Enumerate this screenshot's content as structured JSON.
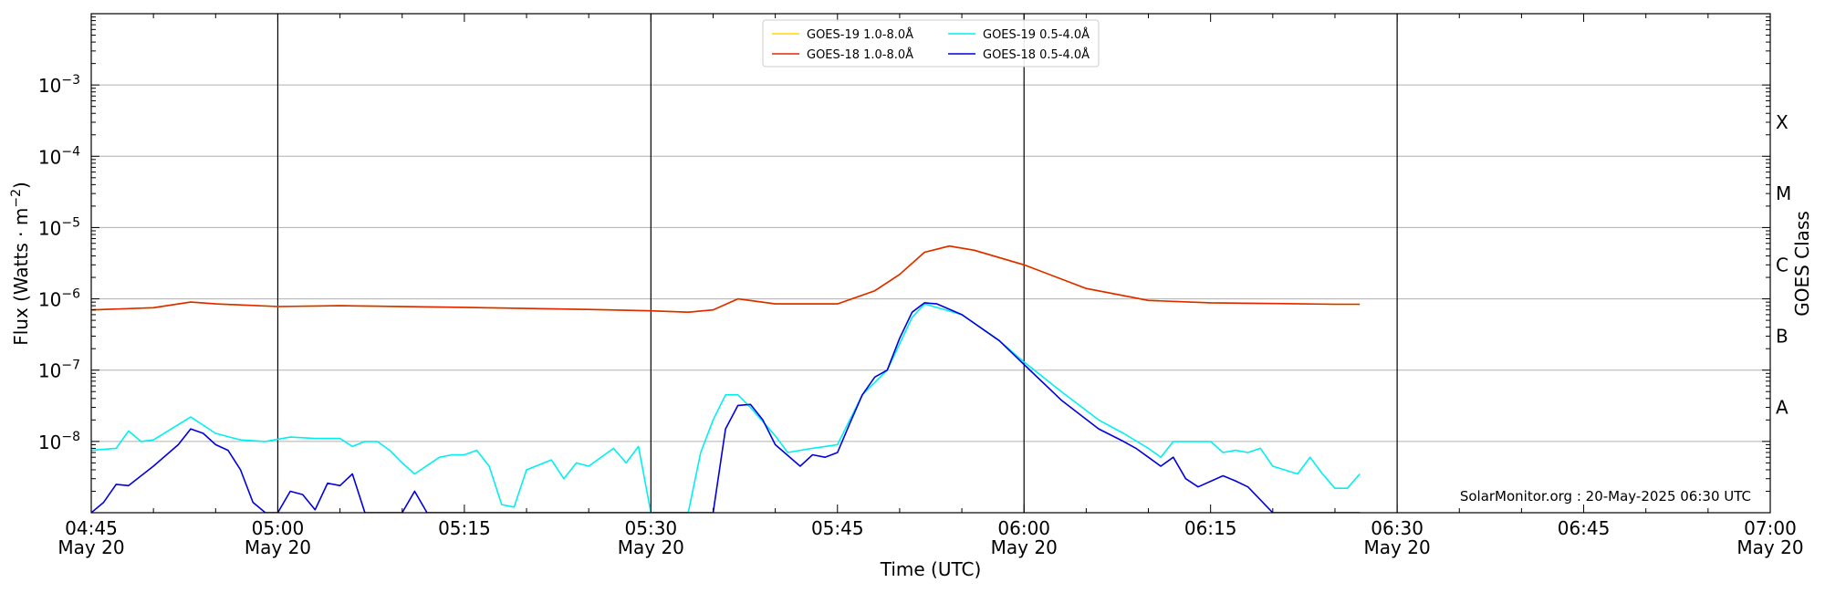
{
  "chart_data": {
    "type": "line",
    "xlabel": "Time (UTC)",
    "ylabel": "Flux (Watts · m⁻²)",
    "right_label": "GOES Class",
    "credit": "SolarMonitor.org : 20-May-2025 06:30 UTC",
    "scale": "log",
    "grid": "horizontal at each decade",
    "legend_placement": "top-center",
    "xlim": [
      "04:45",
      "07:00"
    ],
    "ylim": [
      1e-09,
      0.01
    ],
    "x_ticks": [
      {
        "time": "04:45",
        "top": "04:45",
        "bottom": "May 20"
      },
      {
        "time": "05:00",
        "top": "05:00",
        "bottom": "May 20"
      },
      {
        "time": "05:15",
        "top": "05:15",
        "bottom": ""
      },
      {
        "time": "05:30",
        "top": "05:30",
        "bottom": "May 20"
      },
      {
        "time": "05:45",
        "top": "05:45",
        "bottom": ""
      },
      {
        "time": "06:00",
        "top": "06:00",
        "bottom": "May 20"
      },
      {
        "time": "06:15",
        "top": "06:15",
        "bottom": ""
      },
      {
        "time": "06:30",
        "top": "06:30",
        "bottom": "May 20"
      },
      {
        "time": "06:45",
        "top": "06:45",
        "bottom": ""
      },
      {
        "time": "07:00",
        "top": "07:00",
        "bottom": "May 20"
      }
    ],
    "y_ticks": [
      {
        "value": 1e-08,
        "base": "10",
        "exp": "−8"
      },
      {
        "value": 1e-07,
        "base": "10",
        "exp": "−7"
      },
      {
        "value": 1e-06,
        "base": "10",
        "exp": "−6"
      },
      {
        "value": 1e-05,
        "base": "10",
        "exp": "−5"
      },
      {
        "value": 0.0001,
        "base": "10",
        "exp": "−4"
      },
      {
        "value": 0.001,
        "base": "10",
        "exp": "−3"
      }
    ],
    "vertical_lines": [
      "05:00",
      "05:30",
      "06:00",
      "06:30"
    ],
    "goes_classes": [
      {
        "label": "A",
        "flux": 3e-08
      },
      {
        "label": "B",
        "flux": 3e-07
      },
      {
        "label": "C",
        "flux": 3e-06
      },
      {
        "label": "M",
        "flux": 3e-05
      },
      {
        "label": "X",
        "flux": 0.0003
      }
    ],
    "series": [
      {
        "name": "GOES-19 1.0-8.0Å",
        "color": "#ffd700",
        "x": [
          "04:45",
          "04:50",
          "04:53",
          "04:55",
          "05:00",
          "05:05",
          "05:15",
          "05:25",
          "05:30",
          "05:33",
          "05:35",
          "05:37",
          "05:40",
          "05:45",
          "05:48",
          "05:50",
          "05:52",
          "05:54",
          "05:56",
          "06:00",
          "06:05",
          "06:10",
          "06:15",
          "06:20",
          "06:25",
          "06:27"
        ],
        "y": [
          7e-07,
          7.5e-07,
          9e-07,
          8.5e-07,
          7.8e-07,
          8e-07,
          7.6e-07,
          7.1e-07,
          6.8e-07,
          6.5e-07,
          7e-07,
          1e-06,
          8.5e-07,
          8.5e-07,
          1.3e-06,
          2.2e-06,
          4.5e-06,
          5.5e-06,
          4.8e-06,
          3e-06,
          1.4e-06,
          9.5e-07,
          8.8e-07,
          8.6e-07,
          8.4e-07,
          8.4e-07
        ]
      },
      {
        "name": "GOES-18 1.0-8.0Å",
        "color": "#e02800",
        "x": [
          "04:45",
          "04:50",
          "04:53",
          "04:55",
          "05:00",
          "05:05",
          "05:15",
          "05:25",
          "05:30",
          "05:33",
          "05:35",
          "05:37",
          "05:40",
          "05:45",
          "05:48",
          "05:50",
          "05:52",
          "05:54",
          "05:56",
          "06:00",
          "06:05",
          "06:10",
          "06:15",
          "06:20",
          "06:25",
          "06:27"
        ],
        "y": [
          7e-07,
          7.5e-07,
          9e-07,
          8.5e-07,
          7.8e-07,
          8e-07,
          7.6e-07,
          7.1e-07,
          6.8e-07,
          6.5e-07,
          7e-07,
          1e-06,
          8.5e-07,
          8.5e-07,
          1.3e-06,
          2.2e-06,
          4.5e-06,
          5.5e-06,
          4.8e-06,
          3e-06,
          1.4e-06,
          9.5e-07,
          8.8e-07,
          8.6e-07,
          8.4e-07,
          8.4e-07
        ]
      },
      {
        "name": "GOES-19 0.5-4.0Å",
        "color": "#00f0f0",
        "x": [
          "04:45",
          "04:47",
          "04:48",
          "04:49",
          "04:50",
          "04:53",
          "04:55",
          "04:57",
          "04:59",
          "05:01",
          "05:03",
          "05:05",
          "05:06",
          "05:07",
          "05:08",
          "05:09",
          "05:10",
          "05:11",
          "05:13",
          "05:14",
          "05:15",
          "05:16",
          "05:17",
          "05:18",
          "05:19",
          "05:20",
          "05:22",
          "05:23",
          "05:24",
          "05:25",
          "05:27",
          "05:28",
          "05:29",
          "05:30",
          "05:31",
          "05:32",
          "05:33",
          "05:34",
          "05:35",
          "05:36",
          "05:37",
          "05:38",
          "05:40",
          "05:41",
          "05:43",
          "05:45",
          "05:47",
          "05:49",
          "05:51",
          "05:52",
          "05:55",
          "05:58",
          "06:00",
          "06:03",
          "06:06",
          "06:08",
          "06:10",
          "06:11",
          "06:12",
          "06:14",
          "06:15",
          "06:16",
          "06:17",
          "06:18",
          "06:19",
          "06:20",
          "06:22",
          "06:23",
          "06:24",
          "06:25",
          "06:26",
          "06:27"
        ],
        "y": [
          7.5e-09,
          8e-09,
          1.4e-08,
          1e-08,
          1.05e-08,
          2.2e-08,
          1.3e-08,
          1.05e-08,
          1e-08,
          1.15e-08,
          1.1e-08,
          1.1e-08,
          8.5e-09,
          1e-08,
          1e-08,
          7.5e-09,
          5e-09,
          3.5e-09,
          6e-09,
          6.5e-09,
          6.5e-09,
          7.5e-09,
          4.5e-09,
          1.3e-09,
          1.2e-09,
          4e-09,
          5.5e-09,
          3e-09,
          5e-09,
          4.5e-09,
          8e-09,
          5e-09,
          8.5e-09,
          1e-09,
          1e-09,
          1e-09,
          1e-09,
          7e-09,
          2e-08,
          4.5e-08,
          4.5e-08,
          3e-08,
          1.2e-08,
          7e-09,
          8e-09,
          9e-09,
          4.5e-08,
          1e-07,
          5.5e-07,
          8.5e-07,
          6e-07,
          2.6e-07,
          1.3e-07,
          5e-08,
          2e-08,
          1.3e-08,
          8e-09,
          6e-09,
          1e-08,
          1e-08,
          1e-08,
          7e-09,
          7.5e-09,
          7e-09,
          8e-09,
          4.5e-09,
          3.5e-09,
          6e-09,
          3.5e-09,
          2.2e-09,
          2.2e-09,
          3.5e-09
        ]
      },
      {
        "name": "GOES-18 0.5-4.0Å",
        "color": "#0000e0",
        "x": [
          "04:45",
          "04:46",
          "04:47",
          "04:48",
          "04:50",
          "04:52",
          "04:53",
          "04:54",
          "04:55",
          "04:56",
          "04:57",
          "04:58",
          "04:59",
          "05:00",
          "05:01",
          "05:02",
          "05:03",
          "05:04",
          "05:05",
          "05:06",
          "05:07",
          "05:10",
          "05:11",
          "05:12",
          "05:35",
          "05:36",
          "05:37",
          "05:38",
          "05:39",
          "05:40",
          "05:42",
          "05:43",
          "05:44",
          "05:45",
          "05:46",
          "05:47",
          "05:48",
          "05:49",
          "05:50",
          "05:51",
          "05:52",
          "05:53",
          "05:55",
          "05:58",
          "06:00",
          "06:03",
          "06:06",
          "06:08",
          "06:09",
          "06:10",
          "06:11",
          "06:12",
          "06:13",
          "06:14",
          "06:16",
          "06:17",
          "06:18",
          "06:20",
          "06:27"
        ],
        "y": [
          1e-09,
          1.4e-09,
          2.5e-09,
          2.4e-09,
          4.5e-09,
          9e-09,
          1.5e-08,
          1.3e-08,
          9e-09,
          7.5e-09,
          4e-09,
          1.4e-09,
          1e-09,
          1e-09,
          2e-09,
          1.8e-09,
          1.1e-09,
          2.6e-09,
          2.4e-09,
          3.5e-09,
          1e-09,
          1e-09,
          2e-09,
          1e-09,
          1e-09,
          1.5e-08,
          3.2e-08,
          3.3e-08,
          2e-08,
          9e-09,
          4.5e-09,
          6.5e-09,
          6e-09,
          7e-09,
          1.8e-08,
          4.5e-08,
          8e-08,
          1e-07,
          2.8e-07,
          6.5e-07,
          8.8e-07,
          8.5e-07,
          6e-07,
          2.6e-07,
          1.2e-07,
          3.8e-08,
          1.5e-08,
          1e-08,
          8e-09,
          6e-09,
          4.5e-09,
          6e-09,
          3e-09,
          2.3e-09,
          3.3e-09,
          2.8e-09,
          2.3e-09,
          1e-09,
          1e-09
        ]
      }
    ]
  }
}
